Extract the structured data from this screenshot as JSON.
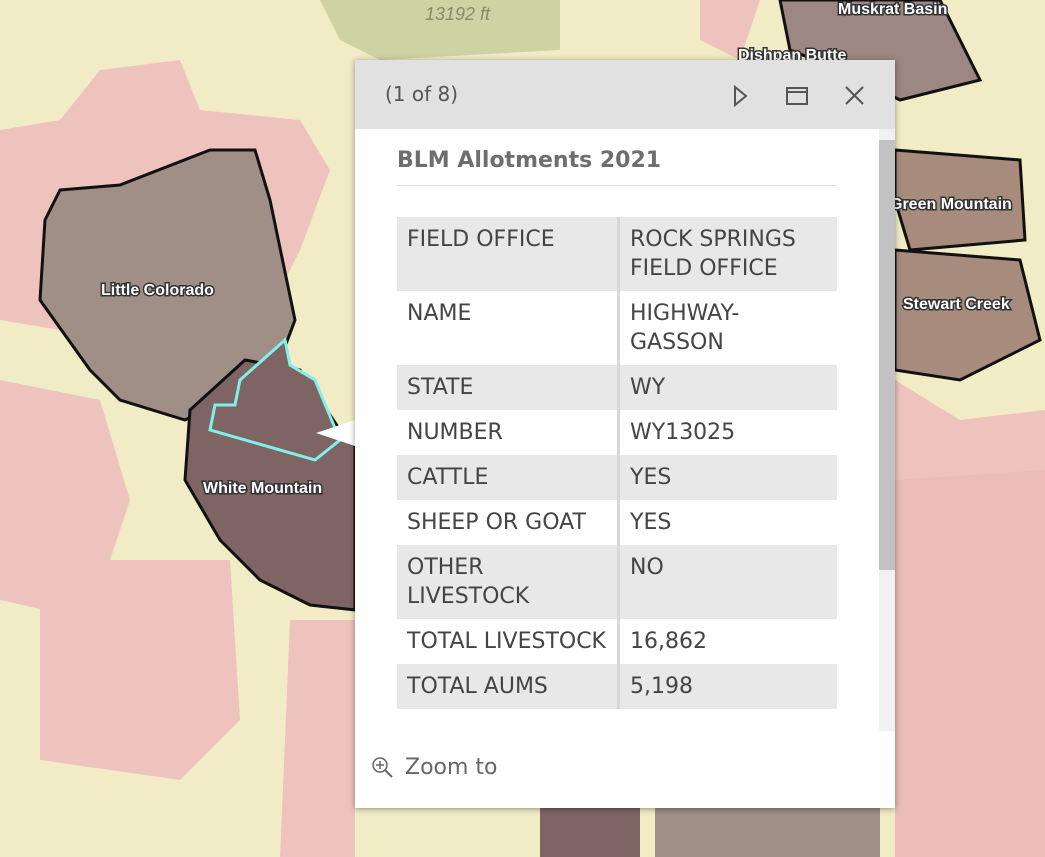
{
  "map": {
    "labels": [
      "13192 ft",
      "Muskrat Basin",
      "Dishpan Butte",
      "Green Mountain",
      "Stewart Creek",
      "Little Colorado",
      "White Mountain"
    ]
  },
  "popup": {
    "pager": "(1 of 8)",
    "title": "BLM Allotments 2021",
    "table": {
      "rows": [
        [
          "FIELD OFFICE",
          "ROCK SPRINGS FIELD OFFICE"
        ],
        [
          "NAME",
          "HIGHWAY-GASSON"
        ],
        [
          "STATE",
          "WY"
        ],
        [
          "NUMBER",
          "WY13025"
        ],
        [
          "CATTLE",
          "YES"
        ],
        [
          "SHEEP OR GOAT",
          "YES"
        ],
        [
          "OTHER LIVESTOCK",
          "NO"
        ],
        [
          "TOTAL LIVESTOCK",
          "16,862"
        ],
        [
          "TOTAL AUMS",
          "5,198"
        ]
      ]
    },
    "action": "Zoom to"
  }
}
